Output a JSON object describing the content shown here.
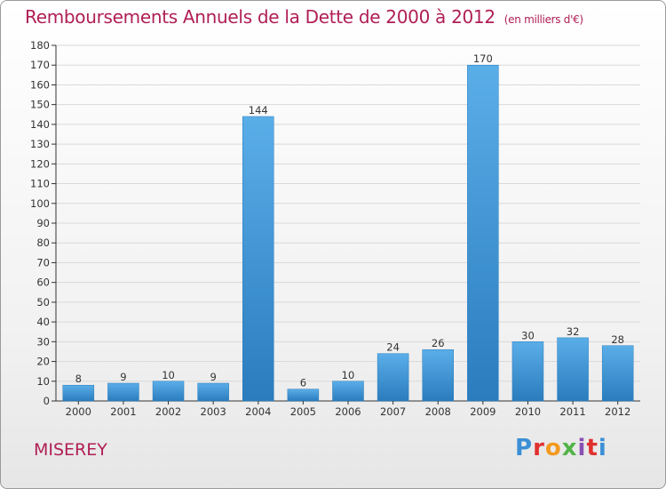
{
  "header": {
    "title": "Remboursements Annuels de la Dette de 2000 à 2012",
    "subtitle": "(en milliers d'€)"
  },
  "footer": {
    "commune": "MISEREY",
    "logo_text": "Proxiti"
  },
  "colors": {
    "title": "#b01e55",
    "bar_top": "#5aaee8",
    "bar_bottom": "#2a7cbd",
    "axis": "#333333",
    "grid": "#d9d9d9"
  },
  "chart_data": {
    "type": "bar",
    "title": "Remboursements Annuels de la Dette de 2000 à 2012",
    "subtitle": "(en milliers d'€)",
    "categories": [
      "2000",
      "2001",
      "2002",
      "2003",
      "2004",
      "2005",
      "2006",
      "2007",
      "2008",
      "2009",
      "2010",
      "2011",
      "2012"
    ],
    "values": [
      8,
      9,
      10,
      9,
      144,
      6,
      10,
      24,
      26,
      170,
      30,
      32,
      28
    ],
    "ylim": [
      0,
      180
    ],
    "yticks": [
      0,
      10,
      20,
      30,
      40,
      50,
      60,
      70,
      80,
      90,
      100,
      110,
      120,
      130,
      140,
      150,
      160,
      170,
      180
    ],
    "grid": true,
    "legend": "none"
  }
}
